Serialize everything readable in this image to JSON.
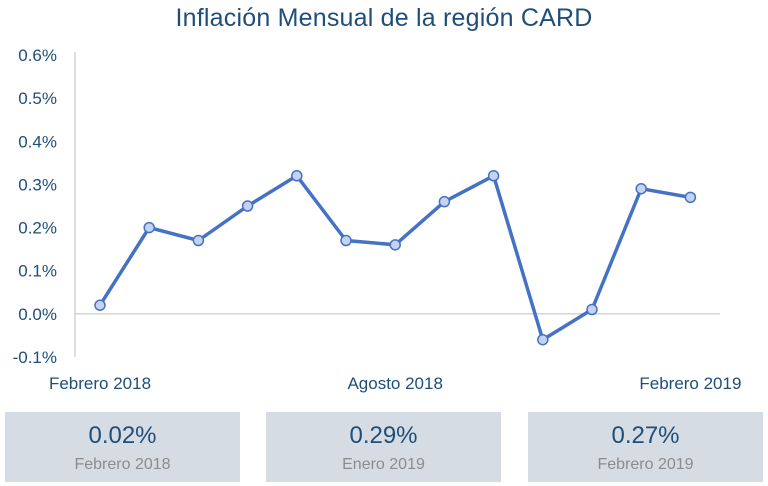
{
  "chart_data": {
    "type": "line",
    "title": "Inflación Mensual de la región CARD",
    "x": [
      "2018-02",
      "2018-03",
      "2018-04",
      "2018-05",
      "2018-06",
      "2018-07",
      "2018-08",
      "2018-09",
      "2018-10",
      "2018-11",
      "2018-12",
      "2019-01",
      "2019-02"
    ],
    "x_tick_labels": [
      "Febrero 2018",
      "Agosto 2018",
      "Febrero 2019"
    ],
    "series": [
      {
        "values": [
          0.02,
          0.2,
          0.17,
          0.25,
          0.32,
          0.17,
          0.16,
          0.26,
          0.32,
          -0.06,
          0.01,
          0.29,
          0.27
        ]
      }
    ],
    "y_unit": "%",
    "ylim": [
      -0.1,
      0.6
    ],
    "y_ticks": [
      -0.1,
      0.0,
      0.1,
      0.2,
      0.3,
      0.4,
      0.5,
      0.6
    ],
    "y_tick_labels": [
      "-0.1%",
      "0.0%",
      "0.1%",
      "0.2%",
      "0.3%",
      "0.4%",
      "0.5%",
      "0.6%"
    ],
    "grid": false,
    "xlabel": "",
    "ylabel": ""
  },
  "colors": {
    "line": "#4472c4",
    "marker_fill": "#c5d3ef",
    "text": "#1f4e79",
    "card_bg": "#d6dce4",
    "card_label": "#8c8c8c"
  },
  "cards": [
    {
      "value": "0.02%",
      "label": "Febrero 2018"
    },
    {
      "value": "0.29%",
      "label": "Enero 2019"
    },
    {
      "value": "0.27%",
      "label": "Febrero 2019"
    }
  ]
}
